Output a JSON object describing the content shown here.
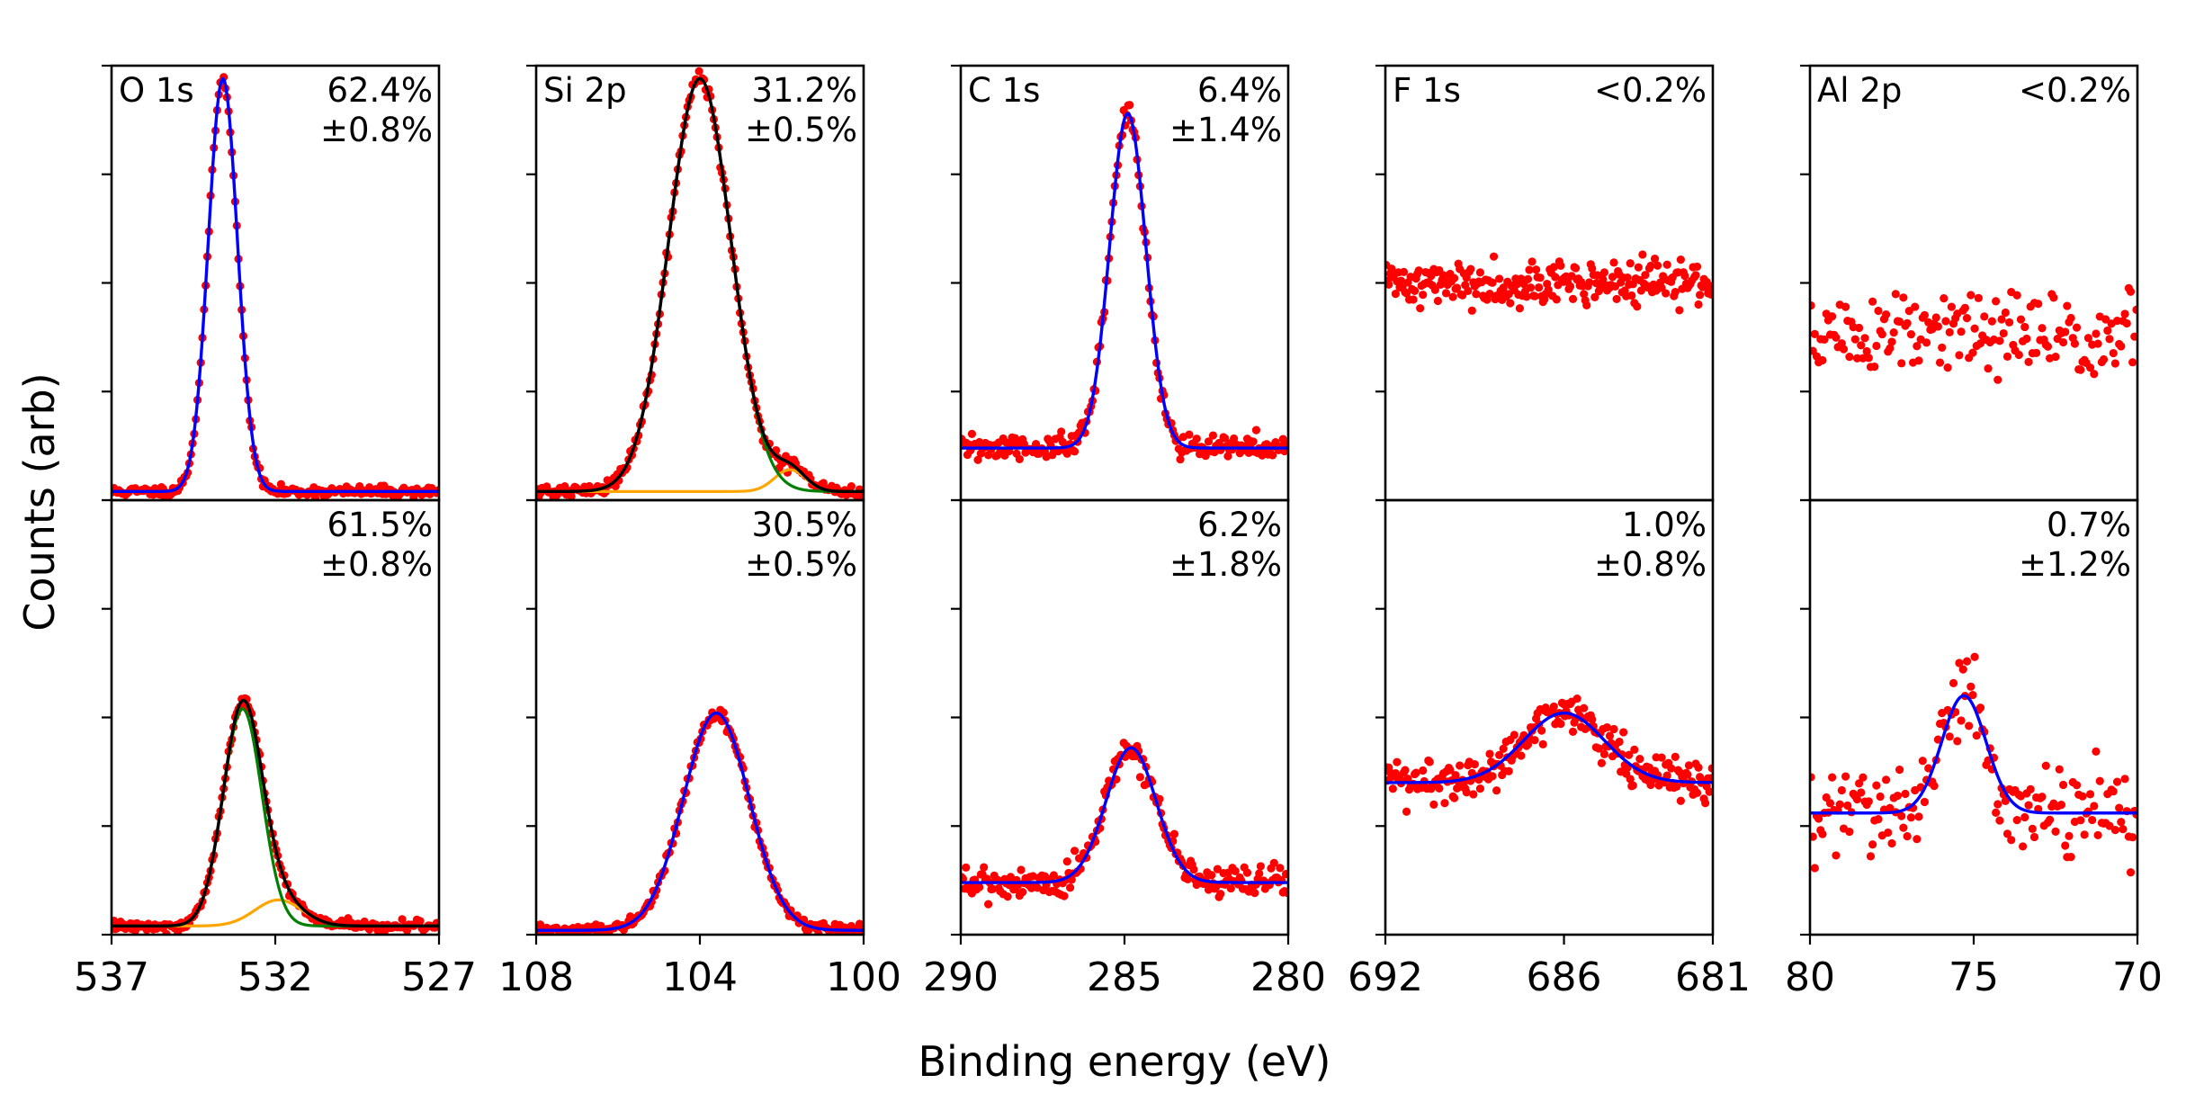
{
  "figure": {
    "xlabel": "Binding energy (eV)",
    "ylabel": "Counts (arb)"
  },
  "colors": {
    "data": "#ff0000",
    "fit_total": "#0000ff",
    "fit_sum_multi": "#000000",
    "comp_main": "#008000",
    "comp_secondary": "#ffa500",
    "axes": "#000000"
  },
  "chart_data": [
    {
      "type": "scatter",
      "id": "o1s",
      "title": "O 1s",
      "xlim": [
        537,
        527
      ],
      "ticks": [
        537,
        532,
        527
      ],
      "tick_labels": [
        "537",
        "532",
        "527"
      ],
      "rows": [
        {
          "percent": "62.4%",
          "error": "±0.8%",
          "baseline": 0.02,
          "noise": 0.006,
          "npts": 200,
          "seed": 11,
          "fit_color": "fit_total",
          "components": [
            {
              "name": "O 1s",
              "center": 533.6,
              "height": 0.95,
              "fwhm": 1.05,
              "color": null
            }
          ]
        },
        {
          "percent": "61.5%",
          "error": "±0.8%",
          "baseline": 0.02,
          "noise": 0.006,
          "npts": 200,
          "seed": 12,
          "fit_color": "fit_sum_multi",
          "components": [
            {
              "name": "main",
              "center": 533.0,
              "height": 0.5,
              "fwhm": 1.4,
              "color": "comp_main"
            },
            {
              "name": "secondary",
              "center": 531.9,
              "height": 0.06,
              "fwhm": 1.7,
              "color": "comp_secondary"
            }
          ]
        }
      ]
    },
    {
      "type": "scatter",
      "id": "si2p",
      "title": "Si 2p",
      "xlim": [
        108,
        100
      ],
      "ticks": [
        108,
        104,
        100
      ],
      "tick_labels": [
        "108",
        "104",
        "100"
      ],
      "rows": [
        {
          "percent": "31.2%",
          "error": "±0.5%",
          "baseline": 0.02,
          "noise": 0.008,
          "npts": 200,
          "seed": 21,
          "fit_color": "fit_sum_multi",
          "components": [
            {
              "name": "main",
              "center": 104.0,
              "height": 0.95,
              "fwhm": 1.8,
              "color": "comp_main"
            },
            {
              "name": "secondary",
              "center": 101.8,
              "height": 0.05,
              "fwhm": 0.9,
              "color": "comp_secondary"
            }
          ]
        },
        {
          "percent": "30.5%",
          "error": "±0.5%",
          "baseline": 0.01,
          "noise": 0.006,
          "npts": 200,
          "seed": 22,
          "fit_color": "fit_total",
          "components": [
            {
              "name": "Si 2p",
              "center": 103.6,
              "height": 0.5,
              "fwhm": 1.9,
              "color": null
            }
          ]
        }
      ]
    },
    {
      "type": "scatter",
      "id": "c1s",
      "title": "C 1s",
      "xlim": [
        290,
        280
      ],
      "ticks": [
        290,
        285,
        280
      ],
      "tick_labels": [
        "290",
        "285",
        "280"
      ],
      "rows": [
        {
          "percent": "6.4%",
          "error": "±1.4%",
          "baseline": 0.12,
          "noise": 0.015,
          "npts": 220,
          "seed": 31,
          "fit_color": "fit_total",
          "components": [
            {
              "name": "C 1s",
              "center": 284.9,
              "height": 0.77,
              "fwhm": 1.3,
              "color": null
            }
          ]
        },
        {
          "percent": "6.2%",
          "error": "±1.8%",
          "baseline": 0.12,
          "noise": 0.018,
          "npts": 220,
          "seed": 32,
          "fit_color": "fit_total",
          "components": [
            {
              "name": "C 1s",
              "center": 284.8,
              "height": 0.31,
              "fwhm": 1.8,
              "color": null
            }
          ]
        }
      ]
    },
    {
      "type": "scatter",
      "id": "f1s",
      "title": "F 1s",
      "xlim": [
        692,
        681
      ],
      "ticks": [
        692,
        686,
        681
      ],
      "tick_labels": [
        "692",
        "686",
        "681"
      ],
      "rows": [
        {
          "percent": "<0.2%",
          "error": "",
          "baseline": 0.5,
          "noise": 0.025,
          "npts": 240,
          "seed": 41,
          "fit_color": null,
          "components": []
        },
        {
          "percent": "1.0%",
          "error": "±0.8%",
          "baseline": 0.35,
          "noise": 0.025,
          "npts": 240,
          "seed": 42,
          "fit_color": "fit_total",
          "components": [
            {
              "name": "F 1s",
              "center": 686.0,
              "height": 0.16,
              "fwhm": 3.2,
              "color": null
            }
          ]
        }
      ]
    },
    {
      "type": "scatter",
      "id": "al2p",
      "title": "Al 2p",
      "xlim": [
        80,
        70
      ],
      "ticks": [
        80,
        75,
        70
      ],
      "tick_labels": [
        "80",
        "75",
        "70"
      ],
      "rows": [
        {
          "percent": "<0.2%",
          "error": "",
          "baseline": 0.38,
          "noise": 0.05,
          "npts": 170,
          "seed": 51,
          "fit_color": null,
          "components": []
        },
        {
          "percent": "0.7%",
          "error": "±1.2%",
          "baseline": 0.28,
          "noise": 0.05,
          "npts": 170,
          "seed": 52,
          "fit_color": "fit_total",
          "components": [
            {
              "name": "Al 2p",
              "center": 75.3,
              "height": 0.27,
              "fwhm": 1.6,
              "color": null
            }
          ]
        }
      ]
    }
  ]
}
